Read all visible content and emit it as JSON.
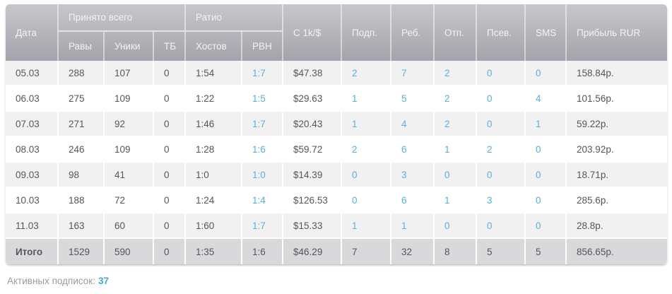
{
  "accent": {
    "link_blue": "#55b1dd",
    "header_gray_top": "#c7c7cb",
    "header_gray_bottom": "#a3a3aa",
    "total_row_bg": "#d9d9dc",
    "odd_row_bg": "#f1f1f2"
  },
  "table": {
    "headers": {
      "date": "Дата",
      "accepted_total": "Принято всего",
      "raws": "Равы",
      "uniques": "Уники",
      "tb": "ТБ",
      "ratio": "Ратио",
      "hosts": "Хостов",
      "rvn": "РВН",
      "c1k": "С 1k/$",
      "subs": "Подп.",
      "reb": "Реб.",
      "otp": "Отп.",
      "psev": "Псев.",
      "sms": "SMS",
      "profit": "Прибыль RUR"
    },
    "column_order": [
      "date",
      "raws",
      "uniques",
      "tb",
      "hosts",
      "rvn",
      "c1k",
      "subs",
      "reb",
      "otp",
      "psev",
      "sms",
      "profit"
    ],
    "link_columns": [
      "rvn",
      "subs",
      "reb",
      "otp",
      "psev",
      "sms"
    ],
    "rows": [
      {
        "date": "05.03",
        "raws": "288",
        "uniques": "107",
        "tb": "0",
        "hosts": "1:54",
        "rvn": "1:7",
        "c1k": "$47.38",
        "subs": "2",
        "reb": "7",
        "otp": "2",
        "psev": "0",
        "sms": "0",
        "profit": "158.84р."
      },
      {
        "date": "06.03",
        "raws": "275",
        "uniques": "109",
        "tb": "0",
        "hosts": "1:22",
        "rvn": "1:5",
        "c1k": "$29.63",
        "subs": "1",
        "reb": "5",
        "otp": "2",
        "psev": "0",
        "sms": "4",
        "profit": "101.56р."
      },
      {
        "date": "07.03",
        "raws": "271",
        "uniques": "92",
        "tb": "0",
        "hosts": "1:46",
        "rvn": "1:7",
        "c1k": "$20.43",
        "subs": "1",
        "reb": "4",
        "otp": "2",
        "psev": "0",
        "sms": "1",
        "profit": "59.22р."
      },
      {
        "date": "08.03",
        "raws": "246",
        "uniques": "109",
        "tb": "0",
        "hosts": "1:28",
        "rvn": "1:6",
        "c1k": "$59.72",
        "subs": "2",
        "reb": "6",
        "otp": "1",
        "psev": "2",
        "sms": "0",
        "profit": "203.92р."
      },
      {
        "date": "09.03",
        "raws": "98",
        "uniques": "41",
        "tb": "0",
        "hosts": "1:0",
        "rvn": "1:0",
        "c1k": "$14.39",
        "subs": "0",
        "reb": "3",
        "otp": "0",
        "psev": "0",
        "sms": "0",
        "profit": "18.71р."
      },
      {
        "date": "10.03",
        "raws": "188",
        "uniques": "72",
        "tb": "0",
        "hosts": "1:24",
        "rvn": "1:4",
        "c1k": "$126.53",
        "subs": "0",
        "reb": "6",
        "otp": "1",
        "psev": "3",
        "sms": "0",
        "profit": "285.6р."
      },
      {
        "date": "11.03",
        "raws": "163",
        "uniques": "60",
        "tb": "0",
        "hosts": "1:60",
        "rvn": "1:7",
        "c1k": "$15.33",
        "subs": "1",
        "reb": "1",
        "otp": "0",
        "psev": "0",
        "sms": "0",
        "profit": "28.8р."
      }
    ],
    "total_row": {
      "date": "Итого",
      "raws": "1529",
      "uniques": "590",
      "tb": "0",
      "hosts": "1:35",
      "rvn": "1:6",
      "c1k": "$46.29",
      "subs": "7",
      "reb": "32",
      "otp": "8",
      "psev": "5",
      "sms": "5",
      "profit": "856.65р."
    }
  },
  "footer": {
    "label": "Активных подписок:",
    "value": "37"
  }
}
